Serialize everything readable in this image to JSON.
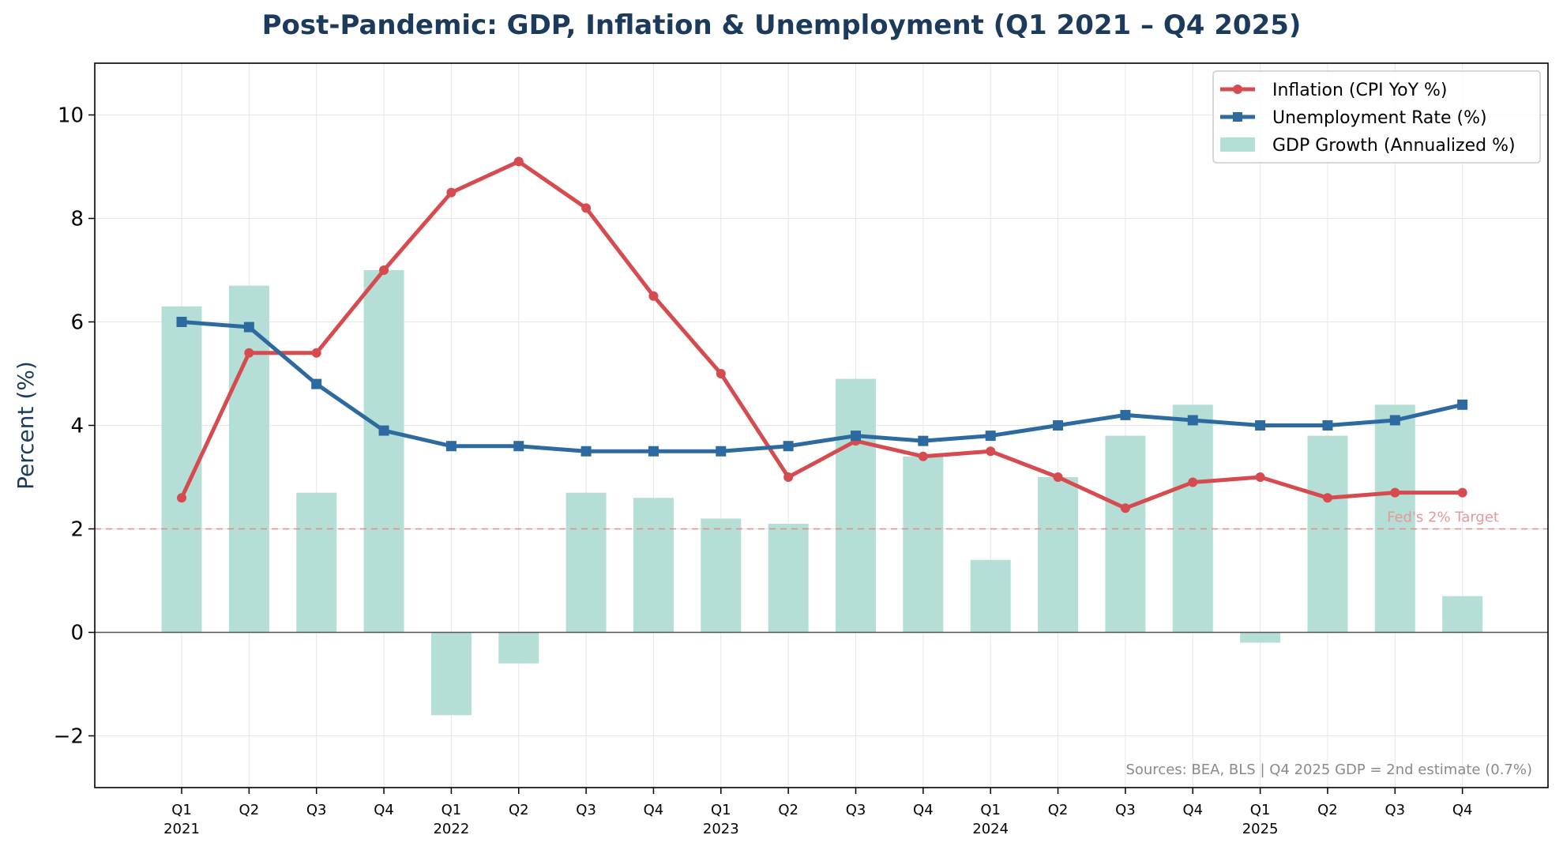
{
  "chart_data": {
    "type": "bar+line",
    "title": "Post-Pandemic: GDP, Inflation & Unemployment (Q1 2021 – Q4 2025)",
    "ylabel": "Percent (%)",
    "xlabel": "",
    "ylim": [
      -3,
      11
    ],
    "yticks": [
      -2,
      0,
      2,
      4,
      6,
      8,
      10
    ],
    "ytick_labels": [
      "−2",
      "0",
      "2",
      "4",
      "6",
      "8",
      "10"
    ],
    "grid": true,
    "legend_position": "top-right",
    "categories": [
      "Q1 2021",
      "Q2 2021",
      "Q3 2021",
      "Q4 2021",
      "Q1 2022",
      "Q2 2022",
      "Q3 2022",
      "Q4 2022",
      "Q1 2023",
      "Q2 2023",
      "Q3 2023",
      "Q4 2023",
      "Q1 2024",
      "Q2 2024",
      "Q3 2024",
      "Q4 2024",
      "Q1 2025",
      "Q2 2025",
      "Q3 2025",
      "Q4 2025"
    ],
    "tick_quarter_labels": [
      "Q1",
      "Q2",
      "Q3",
      "Q4",
      "Q1",
      "Q2",
      "Q3",
      "Q4",
      "Q1",
      "Q2",
      "Q3",
      "Q4",
      "Q1",
      "Q2",
      "Q3",
      "Q4",
      "Q1",
      "Q2",
      "Q3",
      "Q4"
    ],
    "tick_year_labels": [
      "2021",
      "",
      "",
      "",
      "2022",
      "",
      "",
      "",
      "2023",
      "",
      "",
      "",
      "2024",
      "",
      "",
      "",
      "2025",
      "",
      "",
      ""
    ],
    "series": [
      {
        "name": "Inflation (CPI YoY %)",
        "kind": "line",
        "marker": "circle",
        "color": "#d64b4f",
        "values": [
          2.6,
          5.4,
          5.4,
          7.0,
          8.5,
          9.1,
          8.2,
          6.5,
          5.0,
          3.0,
          3.7,
          3.4,
          3.5,
          3.0,
          2.4,
          2.9,
          3.0,
          2.6,
          2.7,
          2.7
        ]
      },
      {
        "name": "Unemployment Rate (%)",
        "kind": "line",
        "marker": "square",
        "color": "#2d6a9f",
        "values": [
          6.0,
          5.9,
          4.8,
          3.9,
          3.6,
          3.6,
          3.5,
          3.5,
          3.5,
          3.6,
          3.8,
          3.7,
          3.8,
          4.0,
          4.2,
          4.1,
          4.0,
          4.0,
          4.1,
          4.4
        ]
      },
      {
        "name": "GDP Growth (Annualized %)",
        "kind": "bar",
        "color": "#b5dfd6",
        "values": [
          6.3,
          6.7,
          2.7,
          7.0,
          -1.6,
          -0.6,
          2.7,
          2.6,
          2.2,
          2.1,
          4.9,
          3.4,
          1.4,
          3.0,
          3.8,
          4.4,
          -0.2,
          3.8,
          4.4,
          0.7
        ]
      }
    ],
    "reference_line": {
      "value": 2,
      "label": "Fed's 2% Target",
      "color": "#e08a8a"
    },
    "source_note": "Sources: BEA, BLS | Q4 2025 GDP = 2nd estimate (0.7%)"
  }
}
